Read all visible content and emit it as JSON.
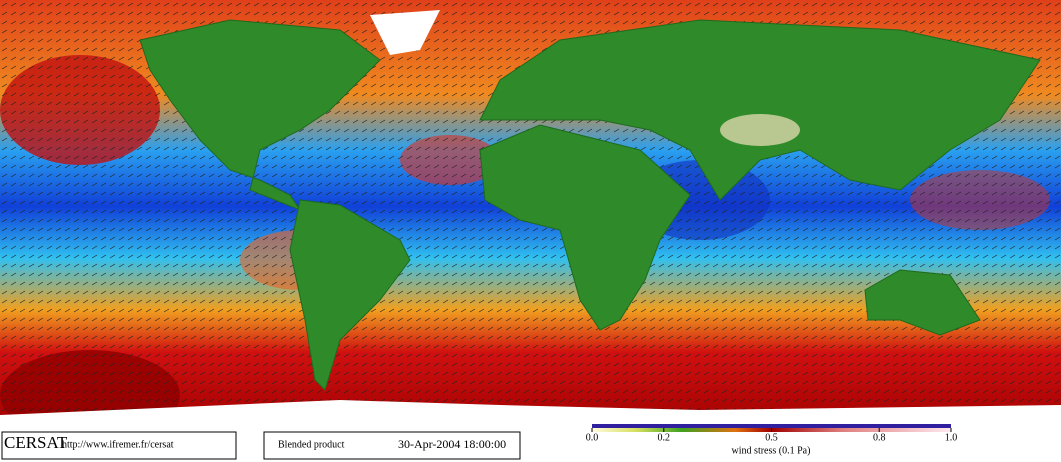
{
  "footer": {
    "logo": "CERSAT",
    "url": "http://www.ifremer.fr/cersat",
    "product": "Blended product",
    "datetime": "30-Apr-2004 18:00:00"
  },
  "colorbar": {
    "label": "wind stress (0.1 Pa)",
    "range": [
      0,
      1
    ],
    "ticks": [
      {
        "value": 0,
        "label": "0.0"
      },
      0.2,
      0.5,
      0.8,
      {
        "value": 1,
        "label": "1.0"
      }
    ]
  }
}
